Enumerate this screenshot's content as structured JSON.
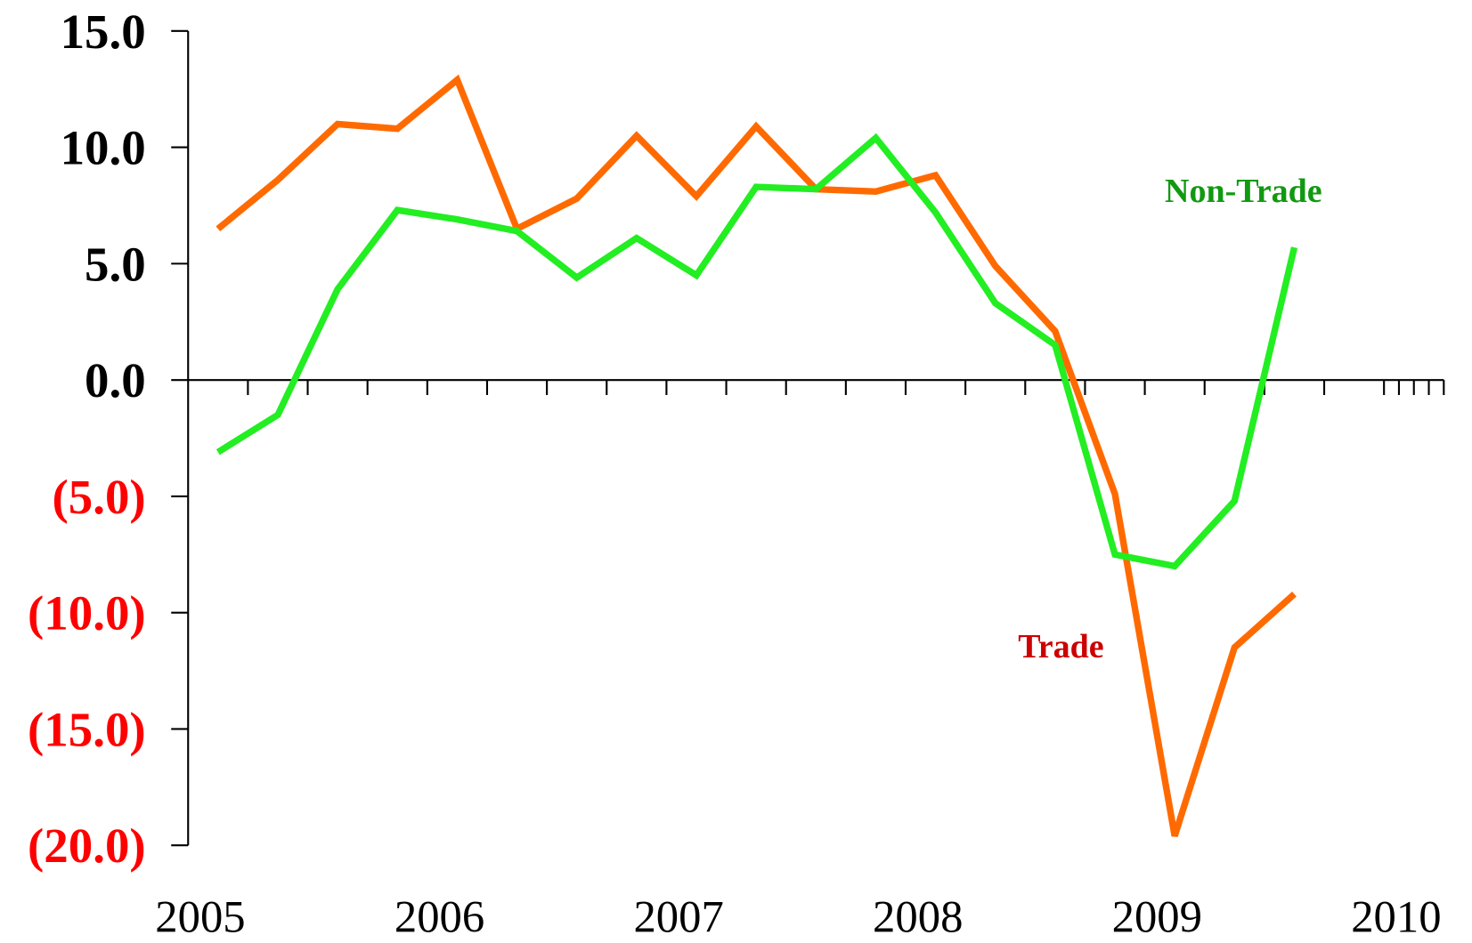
{
  "chart_data": {
    "type": "line",
    "xlim": [
      2005,
      2010.25
    ],
    "xticks": [
      2005,
      2006,
      2007,
      2008,
      2009,
      2010
    ],
    "ylim": [
      -20,
      15
    ],
    "yticks": [
      {
        "value": 15,
        "label": "15.0"
      },
      {
        "value": 10,
        "label": "10.0"
      },
      {
        "value": 5,
        "label": "5.0"
      },
      {
        "value": 0,
        "label": "0.0"
      },
      {
        "value": -5,
        "label": "(5.0)"
      },
      {
        "value": -10,
        "label": "(10.0)"
      },
      {
        "value": -15,
        "label": "(15.0)"
      },
      {
        "value": -20,
        "label": "(20.0)"
      }
    ],
    "negative_label_color": "#ff0000",
    "x": [
      2005.125,
      2005.375,
      2005.625,
      2005.875,
      2006.125,
      2006.375,
      2006.625,
      2006.875,
      2007.125,
      2007.375,
      2007.625,
      2007.875,
      2008.125,
      2008.375,
      2008.625,
      2008.875,
      2009.125,
      2009.375,
      2009.625
    ],
    "series": [
      {
        "name": "Trade",
        "color": "#ff6a00",
        "label_color": "#cc0000",
        "values": [
          6.5,
          8.6,
          11.0,
          10.8,
          12.9,
          6.5,
          7.8,
          10.5,
          7.9,
          10.9,
          8.2,
          8.1,
          8.8,
          4.9,
          2.1,
          -4.9,
          -19.6,
          -11.5,
          -9.2
        ]
      },
      {
        "name": "Non-Trade",
        "color": "#22ee22",
        "label_color": "#119911",
        "values": [
          -3.1,
          -1.5,
          3.9,
          7.3,
          6.9,
          6.4,
          4.4,
          6.1,
          4.5,
          8.3,
          8.2,
          10.4,
          7.2,
          3.3,
          1.5,
          -7.5,
          -8.0,
          -5.2,
          5.7
        ]
      }
    ]
  }
}
